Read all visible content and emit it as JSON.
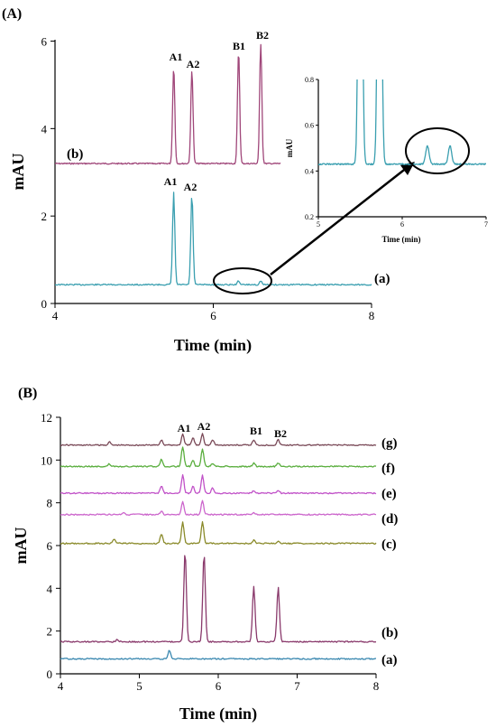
{
  "panel_A_label": "(A)",
  "panel_B_label": "(B)",
  "chart_data": [
    {
      "type": "line",
      "panel": "(A)",
      "xlabel": "Time (min)",
      "ylabel": "mAU",
      "xlim": [
        4,
        8
      ],
      "ylim": [
        0,
        6.3
      ],
      "xticks": [
        "4",
        "6",
        "8"
      ],
      "yticks": [
        "0",
        "2",
        "4",
        "6"
      ],
      "peak_labels": [
        "A1",
        "A2",
        "B1",
        "B2"
      ],
      "series": [
        {
          "name": "(b)",
          "color": "#a0477a",
          "baseline": 3.2,
          "peaks": [
            [
              5.5,
              5.38
            ],
            [
              5.73,
              5.32
            ],
            [
              6.32,
              5.75
            ],
            [
              6.6,
              5.92
            ]
          ]
        },
        {
          "name": "(a)",
          "color": "#3a9fb0",
          "baseline": 0.43,
          "peaks": [
            [
              5.5,
              2.55
            ],
            [
              5.73,
              2.52
            ],
            [
              6.32,
              0.52
            ],
            [
              6.6,
              0.52
            ]
          ]
        }
      ]
    },
    {
      "type": "line",
      "panel": "inset",
      "xlabel": "Time (min)",
      "ylabel": "mAU",
      "xlim": [
        5,
        7
      ],
      "ylim": [
        0.2,
        0.8
      ],
      "xticks": [
        "5",
        "6",
        "7"
      ],
      "yticks": [
        "0.2",
        "0.4",
        "0.6",
        "0.8"
      ],
      "series": [
        {
          "name": "(a)",
          "color": "#3a9fb0",
          "baseline": 0.43,
          "peaks": [
            [
              5.5,
              2.55
            ],
            [
              5.73,
              2.52
            ],
            [
              6.3,
              0.51
            ],
            [
              6.57,
              0.51
            ]
          ]
        }
      ]
    },
    {
      "type": "line",
      "panel": "(B)",
      "xlabel": "Time (min)",
      "ylabel": "mAU",
      "xlim": [
        4,
        8
      ],
      "ylim": [
        0,
        12
      ],
      "xticks": [
        "4",
        "5",
        "6",
        "7",
        "8"
      ],
      "yticks": [
        "0",
        "2",
        "4",
        "6",
        "8",
        "10",
        "12"
      ],
      "peak_labels": [
        "A1",
        "A2",
        "B1",
        "B2"
      ],
      "series": [
        {
          "name": "(g)",
          "color": "#7a4a58",
          "baseline": 10.7,
          "peaks": [
            [
              4.62,
              10.85
            ],
            [
              5.28,
              10.95
            ],
            [
              5.55,
              11.2
            ],
            [
              5.68,
              11.05
            ],
            [
              5.8,
              11.25
            ],
            [
              5.93,
              10.95
            ],
            [
              6.45,
              10.95
            ],
            [
              6.76,
              10.95
            ]
          ]
        },
        {
          "name": "(f)",
          "color": "#5aae3e",
          "baseline": 9.7,
          "peaks": [
            [
              4.62,
              9.82
            ],
            [
              5.28,
              10.05
            ],
            [
              5.55,
              10.62
            ],
            [
              5.68,
              10.0
            ],
            [
              5.8,
              10.52
            ],
            [
              5.93,
              9.85
            ],
            [
              6.45,
              9.87
            ],
            [
              6.76,
              9.87
            ]
          ]
        },
        {
          "name": "(e)",
          "color": "#c152c8",
          "baseline": 8.45,
          "peaks": [
            [
              5.28,
              8.8
            ],
            [
              5.55,
              9.3
            ],
            [
              5.68,
              8.8
            ],
            [
              5.8,
              9.3
            ],
            [
              5.93,
              8.7
            ],
            [
              6.45,
              8.58
            ],
            [
              6.76,
              8.58
            ]
          ]
        },
        {
          "name": "(d)",
          "color": "#cc66cc",
          "baseline": 7.45,
          "peaks": [
            [
              4.8,
              7.55
            ],
            [
              5.28,
              7.6
            ],
            [
              5.55,
              8.08
            ],
            [
              5.8,
              8.1
            ],
            [
              6.45,
              7.55
            ]
          ]
        },
        {
          "name": "(c)",
          "color": "#8a8a2a",
          "baseline": 6.1,
          "peaks": [
            [
              4.68,
              6.3
            ],
            [
              5.28,
              6.55
            ],
            [
              5.55,
              7.1
            ],
            [
              5.8,
              7.1
            ],
            [
              6.45,
              6.25
            ],
            [
              6.76,
              6.2
            ]
          ]
        },
        {
          "name": "(b)",
          "color": "#8a3a6c",
          "baseline": 1.5,
          "peaks": [
            [
              4.72,
              1.62
            ],
            [
              5.58,
              5.75
            ],
            [
              5.82,
              5.65
            ],
            [
              6.45,
              4.1
            ],
            [
              6.76,
              4.05
            ]
          ]
        },
        {
          "name": "(a)",
          "color": "#3a88b0",
          "baseline": 0.7,
          "peaks": [
            [
              5.38,
              1.1
            ]
          ]
        }
      ]
    }
  ]
}
